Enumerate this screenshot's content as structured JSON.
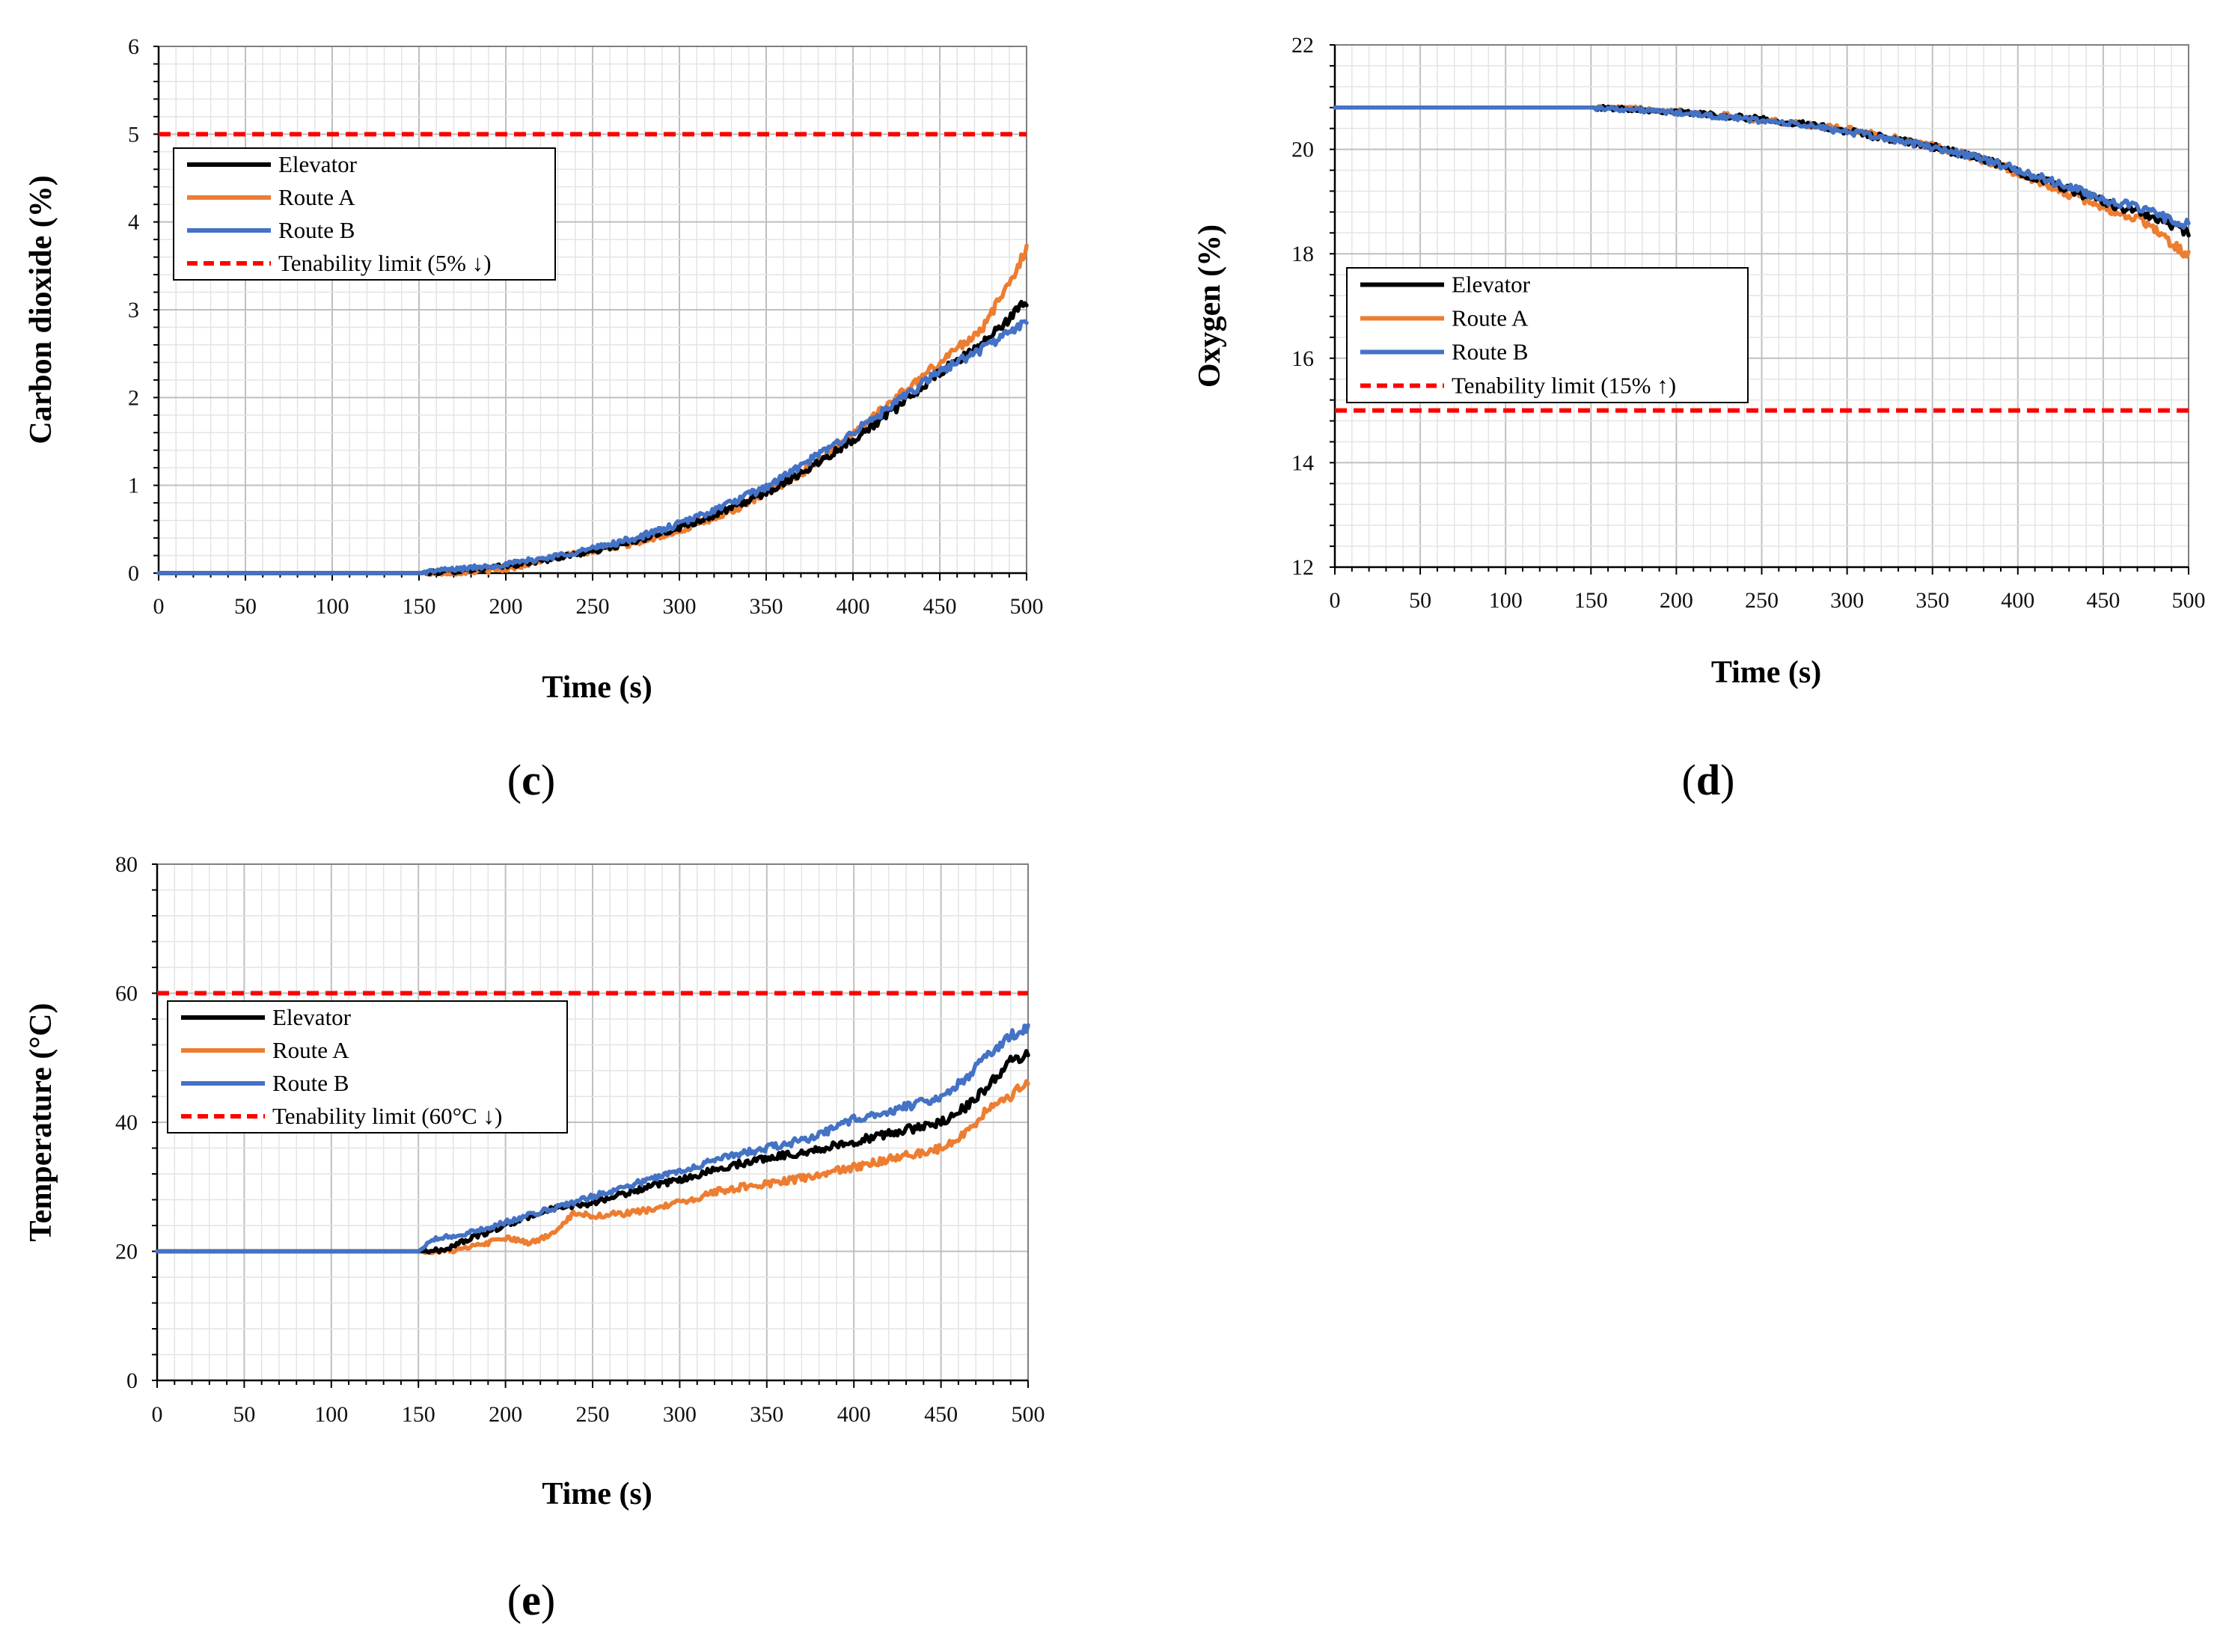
{
  "figure": {
    "colors": {
      "elevator": "#000000",
      "route_a": "#ED7D31",
      "route_b": "#4472C4",
      "limit": "#FF0000",
      "grid_major": "#BFBFBF",
      "grid_minor": "#E4E4E4"
    }
  },
  "chart_data": [
    {
      "id": "c",
      "type": "line",
      "panel_label": "c",
      "title": "",
      "xlabel": "Time (s)",
      "ylabel": "Carbon dioxide (%)",
      "xlim": [
        0,
        500
      ],
      "ylim": [
        0,
        6
      ],
      "xticks": [
        0,
        50,
        100,
        150,
        200,
        250,
        300,
        350,
        400,
        450,
        500
      ],
      "yticks": [
        0,
        1,
        2,
        3,
        4,
        5,
        6
      ],
      "legend_position": "top-left",
      "limit": {
        "name": "Tenability limit (5% ↓)",
        "y": 5
      },
      "series": [
        {
          "name": "Elevator",
          "color": "#000000",
          "x": [
            0,
            150,
            160,
            175,
            200,
            225,
            250,
            275,
            300,
            325,
            350,
            375,
            400,
            425,
            450,
            475,
            490,
            500
          ],
          "y": [
            0,
            0,
            0.01,
            0.03,
            0.08,
            0.16,
            0.25,
            0.36,
            0.52,
            0.7,
            0.92,
            1.2,
            1.52,
            1.88,
            2.28,
            2.62,
            2.9,
            3.1
          ]
        },
        {
          "name": "Route A",
          "color": "#ED7D31",
          "x": [
            0,
            150,
            160,
            175,
            200,
            225,
            250,
            275,
            300,
            325,
            350,
            375,
            400,
            425,
            450,
            475,
            490,
            500
          ],
          "y": [
            0,
            0,
            0.0,
            0.01,
            0.04,
            0.17,
            0.25,
            0.35,
            0.48,
            0.66,
            0.9,
            1.2,
            1.6,
            2.0,
            2.4,
            2.8,
            3.3,
            3.7
          ]
        },
        {
          "name": "Route B",
          "color": "#4472C4",
          "x": [
            0,
            150,
            160,
            175,
            200,
            225,
            250,
            275,
            300,
            325,
            350,
            375,
            400,
            425,
            450,
            475,
            490,
            500
          ],
          "y": [
            0,
            0,
            0.03,
            0.05,
            0.1,
            0.18,
            0.28,
            0.4,
            0.56,
            0.76,
            0.98,
            1.28,
            1.6,
            1.94,
            2.3,
            2.56,
            2.75,
            2.85
          ]
        }
      ]
    },
    {
      "id": "d",
      "type": "line",
      "panel_label": "d",
      "title": "",
      "xlabel": "Time (s)",
      "ylabel": "Oxygen (%)",
      "xlim": [
        0,
        500
      ],
      "ylim": [
        12,
        22
      ],
      "xticks": [
        0,
        50,
        100,
        150,
        200,
        250,
        300,
        350,
        400,
        450,
        500
      ],
      "yticks": [
        12,
        14,
        16,
        18,
        20,
        22
      ],
      "legend_position": "middle-left",
      "limit": {
        "name": "Tenability limit (15% ↑)",
        "y": 15
      },
      "series": [
        {
          "name": "Elevator",
          "color": "#000000",
          "x": [
            0,
            150,
            175,
            200,
            225,
            250,
            275,
            300,
            325,
            350,
            375,
            400,
            425,
            450,
            475,
            490,
            500
          ],
          "y": [
            20.8,
            20.8,
            20.77,
            20.72,
            20.65,
            20.58,
            20.48,
            20.35,
            20.2,
            20.05,
            19.85,
            19.58,
            19.3,
            19.0,
            18.75,
            18.55,
            18.4
          ]
        },
        {
          "name": "Route A",
          "color": "#ED7D31",
          "x": [
            0,
            150,
            175,
            200,
            225,
            250,
            275,
            300,
            325,
            350,
            375,
            400,
            425,
            450,
            475,
            490,
            500
          ],
          "y": [
            20.8,
            20.8,
            20.78,
            20.74,
            20.66,
            20.56,
            20.47,
            20.38,
            20.23,
            20.06,
            19.85,
            19.55,
            19.2,
            18.9,
            18.6,
            18.2,
            17.95
          ]
        },
        {
          "name": "Route B",
          "color": "#4472C4",
          "x": [
            0,
            150,
            175,
            200,
            225,
            250,
            275,
            300,
            325,
            350,
            375,
            400,
            425,
            450,
            475,
            490,
            500
          ],
          "y": [
            20.8,
            20.8,
            20.76,
            20.7,
            20.63,
            20.55,
            20.46,
            20.34,
            20.2,
            20.04,
            19.86,
            19.6,
            19.33,
            19.05,
            18.83,
            18.65,
            18.55
          ]
        }
      ]
    },
    {
      "id": "e",
      "type": "line",
      "panel_label": "e",
      "title": "",
      "xlabel": "Time (s)",
      "ylabel": "Temperature (°C)",
      "xlim": [
        0,
        500
      ],
      "ylim": [
        0,
        80
      ],
      "xticks": [
        0,
        50,
        100,
        150,
        200,
        250,
        300,
        350,
        400,
        450,
        500
      ],
      "yticks": [
        0,
        20,
        40,
        60,
        80
      ],
      "legend_position": "top-left",
      "limit": {
        "name": "Tenability limit (60°C ↓)",
        "y": 60
      },
      "series": [
        {
          "name": "Elevator",
          "color": "#000000",
          "x": [
            0,
            150,
            165,
            175,
            200,
            225,
            250,
            275,
            300,
            325,
            350,
            375,
            400,
            425,
            450,
            465,
            475,
            490,
            500
          ],
          "y": [
            20,
            20,
            20.2,
            21.5,
            24.0,
            26.5,
            27.5,
            29.5,
            31.0,
            33.0,
            34.5,
            35.5,
            37.0,
            38.5,
            40.0,
            42.5,
            45.0,
            49.5,
            50.5
          ]
        },
        {
          "name": "Route A",
          "color": "#ED7D31",
          "x": [
            0,
            150,
            165,
            175,
            200,
            215,
            225,
            240,
            250,
            275,
            300,
            325,
            350,
            375,
            400,
            425,
            450,
            465,
            475,
            490,
            500
          ],
          "y": [
            20,
            20,
            20.0,
            20.3,
            22.0,
            21.3,
            22.5,
            26.0,
            25.5,
            26.0,
            27.5,
            29.5,
            30.5,
            31.5,
            33.0,
            34.5,
            36.0,
            38.5,
            41.5,
            44.0,
            46.5
          ]
        },
        {
          "name": "Route B",
          "color": "#4472C4",
          "x": [
            0,
            150,
            160,
            175,
            200,
            225,
            250,
            275,
            300,
            325,
            350,
            375,
            400,
            425,
            450,
            465,
            475,
            490,
            500
          ],
          "y": [
            20,
            20,
            22.0,
            22.5,
            24.5,
            26.5,
            28.5,
            30.5,
            32.5,
            34.5,
            36.0,
            37.5,
            40.5,
            42.0,
            44.0,
            47.0,
            50.0,
            53.5,
            54.5
          ]
        }
      ]
    }
  ]
}
